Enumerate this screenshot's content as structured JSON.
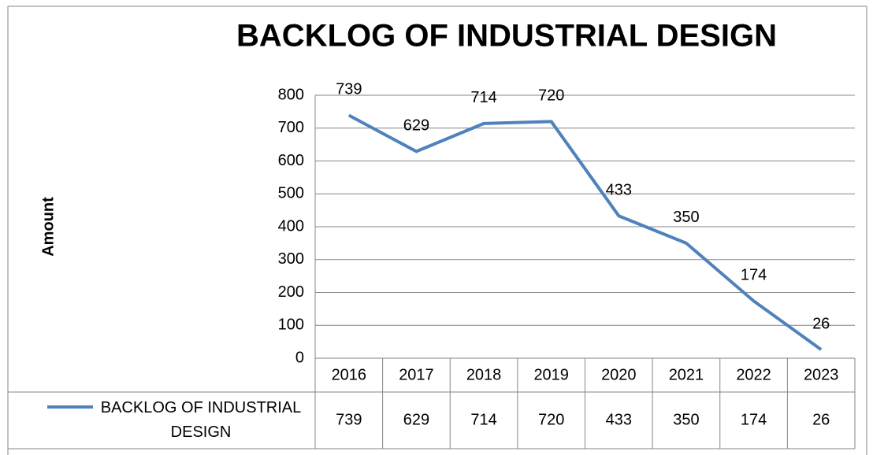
{
  "chart_data": {
    "type": "line",
    "title": "BACKLOG OF INDUSTRIAL DESIGN",
    "y_label": "Amount",
    "categories": [
      "2016",
      "2017",
      "2018",
      "2019",
      "2020",
      "2021",
      "2022",
      "2023"
    ],
    "series": [
      {
        "name": "BACKLOG OF INDUSTRIAL DESIGN",
        "color": "#4f81bd",
        "values": [
          739,
          629,
          714,
          720,
          433,
          350,
          174,
          26
        ]
      }
    ],
    "ylim": [
      0,
      800
    ],
    "yticks": [
      0,
      100,
      200,
      300,
      400,
      500,
      600,
      700,
      800
    ],
    "grid": true,
    "data_labels": true,
    "data_table": true
  }
}
